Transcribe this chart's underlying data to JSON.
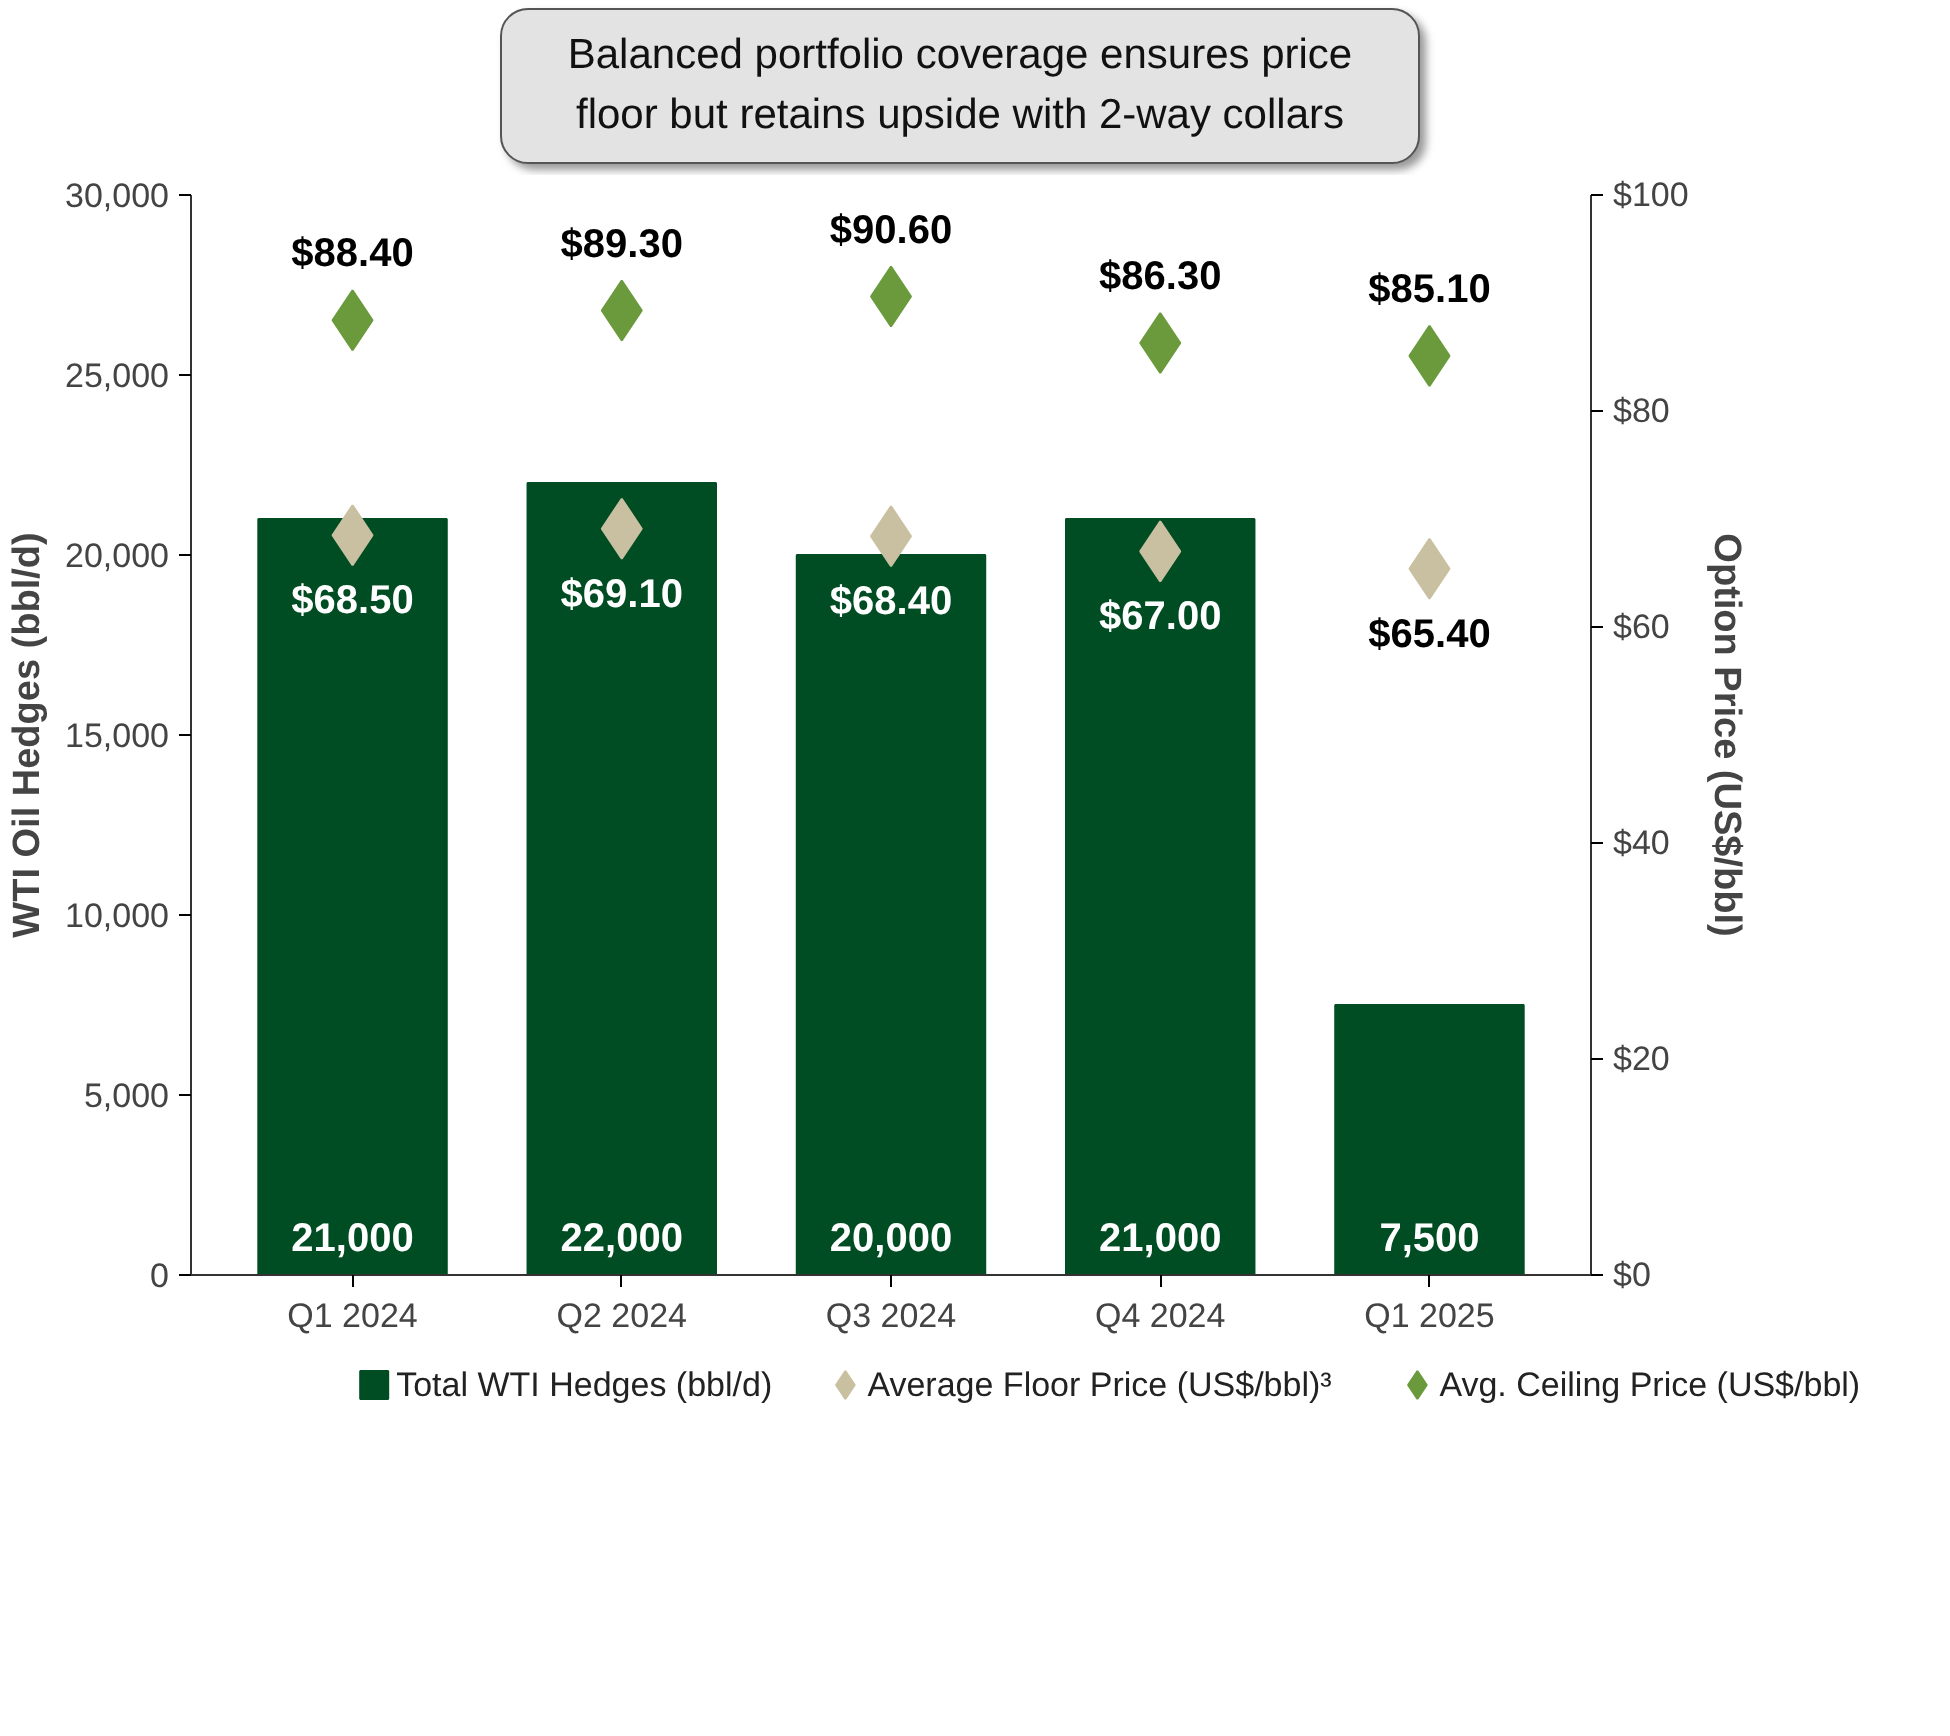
{
  "chart_data": {
    "type": "bar",
    "title": "Balanced portfolio coverage ensures price floor but retains upside with 2-way collars",
    "categories": [
      "Q1 2024",
      "Q2 2024",
      "Q3 2024",
      "Q4 2024",
      "Q1 2025"
    ],
    "ylabel": "WTI Oil Hedges (bbl/d)",
    "y2label": "Option Price (US$/bbl)",
    "ylim": [
      0,
      30000
    ],
    "yticks": [
      {
        "value": 0,
        "label": "0"
      },
      {
        "value": 5000,
        "label": "5,000"
      },
      {
        "value": 10000,
        "label": "10,000"
      },
      {
        "value": 15000,
        "label": "15,000"
      },
      {
        "value": 20000,
        "label": "20,000"
      },
      {
        "value": 25000,
        "label": "25,000"
      },
      {
        "value": 30000,
        "label": "30,000"
      }
    ],
    "y2lim": [
      0,
      100
    ],
    "y2ticks": [
      {
        "value": 0,
        "label": "$0"
      },
      {
        "value": 20,
        "label": "$20"
      },
      {
        "value": 40,
        "label": "$40"
      },
      {
        "value": 60,
        "label": "$60"
      },
      {
        "value": 80,
        "label": "$80"
      },
      {
        "value": 100,
        "label": "$100"
      }
    ],
    "grid": false,
    "legend": "bottom",
    "series": [
      {
        "name": "Total WTI Hedges (bbl/d)",
        "color": "#004d23",
        "values": [
          21000,
          22000,
          20000,
          21000,
          7500
        ],
        "value_labels": [
          "21,000",
          "22,000",
          "20,000",
          "21,000",
          "7,500"
        ]
      },
      {
        "name": "Average Floor Price (US$/bbl)³",
        "type": "scatter",
        "axis": "y2",
        "marker": "diamond",
        "color": "#c8c0a0",
        "values": [
          68.5,
          69.1,
          68.4,
          67.0,
          65.4
        ],
        "value_labels": [
          "$68.50",
          "$69.10",
          "$68.40",
          "$67.00",
          "$65.40"
        ]
      },
      {
        "name": "Avg. Ceiling Price (US$/bbl)",
        "type": "scatter",
        "axis": "y2",
        "marker": "diamond",
        "color": "#6a9a3c",
        "values": [
          88.4,
          89.3,
          90.6,
          86.3,
          85.1
        ],
        "value_labels": [
          "$88.40",
          "$89.30",
          "$90.60",
          "$86.30",
          "$85.10"
        ]
      }
    ]
  }
}
